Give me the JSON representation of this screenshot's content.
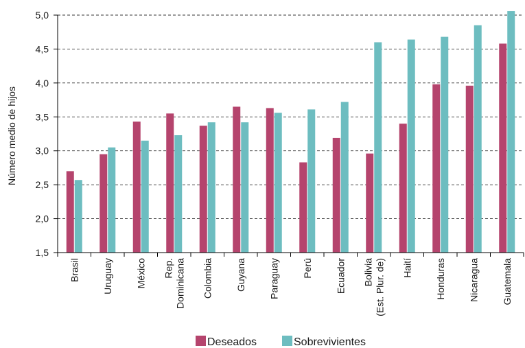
{
  "chart_data": {
    "type": "bar",
    "ylabel": "Número medio de hijos",
    "xlabel": "",
    "ylim": [
      1.5,
      5.0
    ],
    "yticks": [
      "5,0",
      "4,5",
      "4,0",
      "3,5",
      "3,0",
      "2,5",
      "2,0",
      "1,5"
    ],
    "ytick_values": [
      5.0,
      4.5,
      4.0,
      3.5,
      3.0,
      2.5,
      2.0,
      1.5
    ],
    "grid": "horizontal dashed",
    "legend_position": "bottom",
    "categories": [
      [
        "Brasil"
      ],
      [
        "Uruguay"
      ],
      [
        "México"
      ],
      [
        "Rep.",
        "Dominicana"
      ],
      [
        "Colombia"
      ],
      [
        "Guyana"
      ],
      [
        "Paraguay"
      ],
      [
        "Perú"
      ],
      [
        "Ecuador"
      ],
      [
        "Bolivia",
        "(Est. Plur. de)"
      ],
      [
        "Haití"
      ],
      [
        "Honduras"
      ],
      [
        "Nicaragua"
      ],
      [
        "Guatemala"
      ]
    ],
    "series": [
      {
        "name": "Deseados",
        "color": "#b5446d",
        "values": [
          2.7,
          2.95,
          3.43,
          3.55,
          3.37,
          3.65,
          3.63,
          2.83,
          3.19,
          2.96,
          3.4,
          3.98,
          3.96,
          4.58
        ]
      },
      {
        "name": "Sobrevivientes",
        "color": "#6dbdc0",
        "values": [
          2.57,
          3.05,
          3.15,
          3.23,
          3.42,
          3.42,
          3.56,
          3.61,
          3.72,
          4.6,
          4.64,
          4.68,
          4.85,
          5.06
        ]
      }
    ]
  }
}
